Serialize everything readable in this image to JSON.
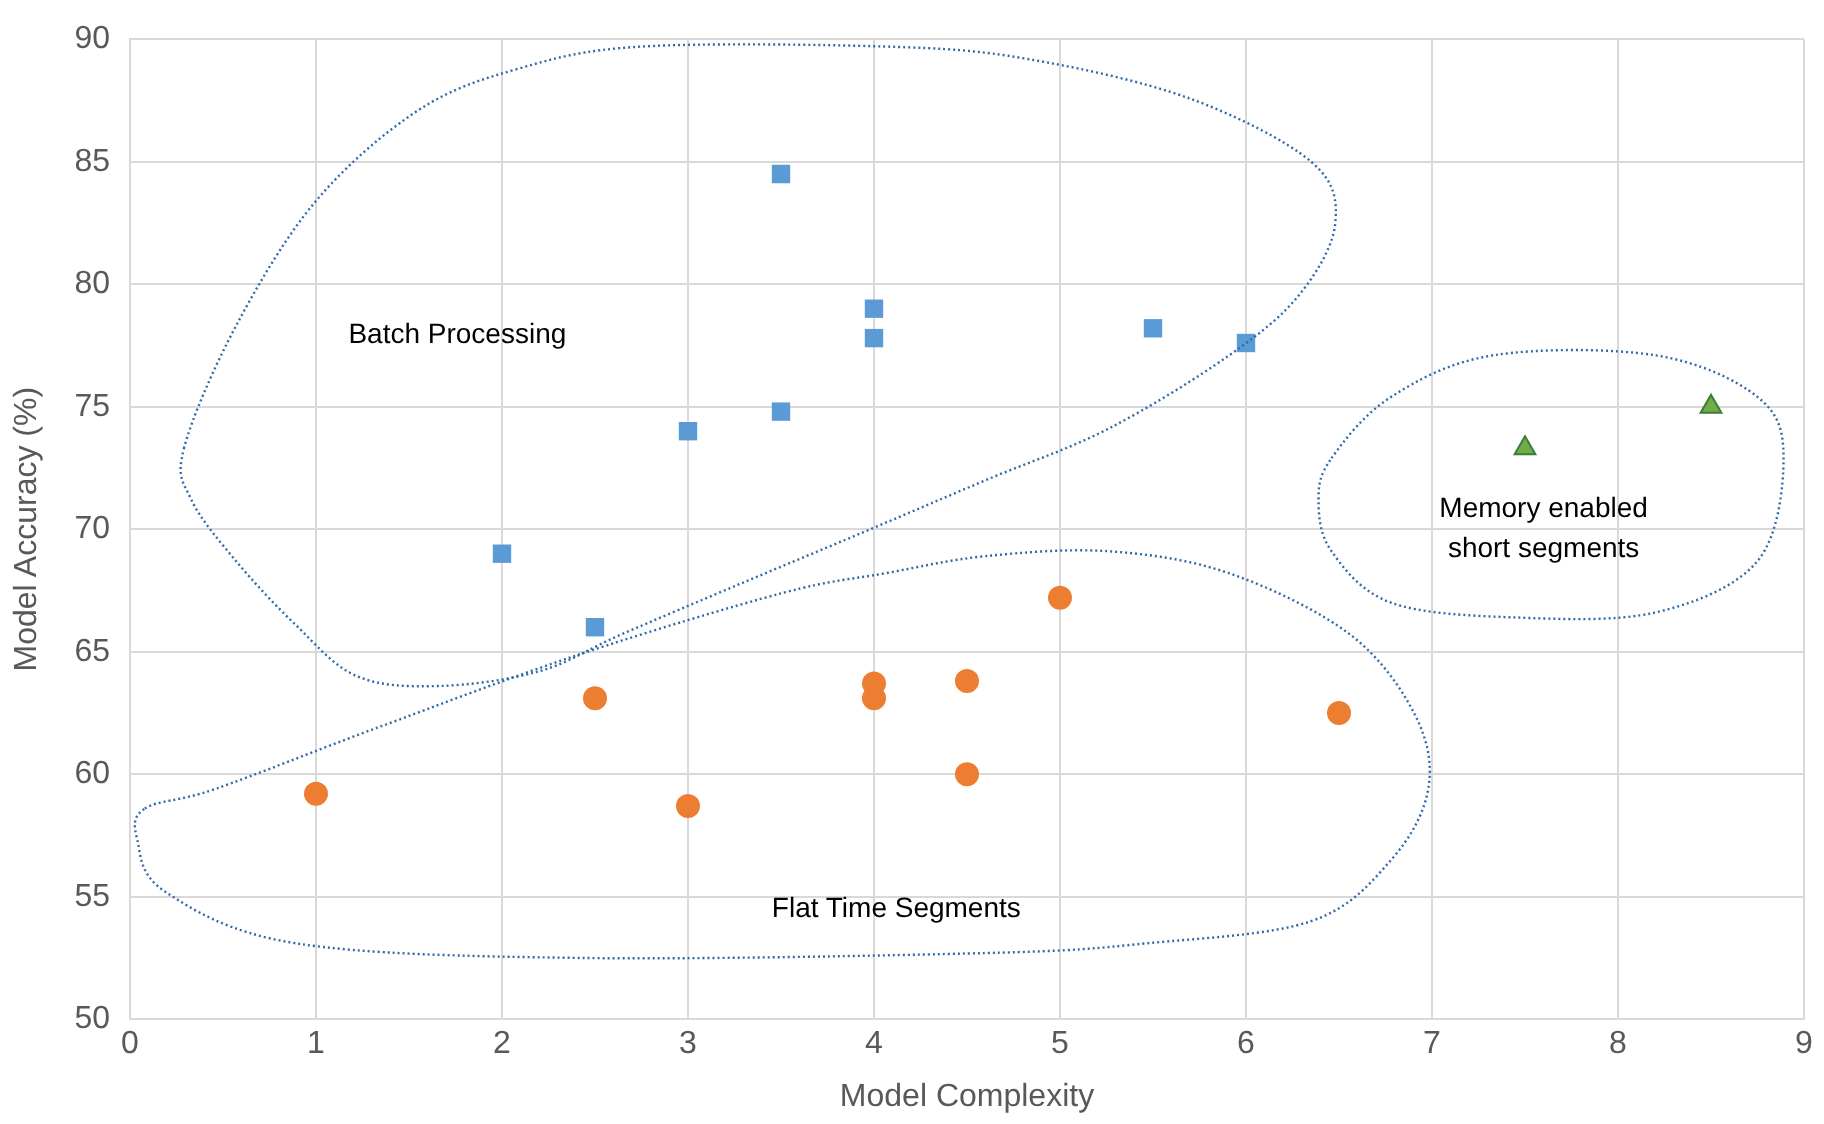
{
  "chart_data": {
    "type": "scatter",
    "xlabel": "Model Complexity",
    "ylabel": "Model Accuracy (%)",
    "xlim": [
      0,
      9
    ],
    "xticks": [
      0,
      1,
      2,
      3,
      4,
      5,
      6,
      7,
      8,
      9
    ],
    "ylim": [
      50,
      90
    ],
    "yticks": [
      50,
      55,
      60,
      65,
      70,
      75,
      80,
      85,
      90
    ],
    "grid": true,
    "legend": false,
    "series": [
      {
        "color": "#5b9bd5",
        "marker": "square",
        "x": [
          2,
          2.5,
          3,
          3.5,
          3.5,
          4,
          4,
          5.5,
          6
        ],
        "values": [
          69,
          66,
          74,
          74.8,
          84.5,
          79,
          77.8,
          78.2,
          77.6
        ]
      },
      {
        "color": "#ed7d31",
        "marker": "circle",
        "x": [
          1,
          2.5,
          3,
          4,
          4,
          4.5,
          4.5,
          5,
          6.5
        ],
        "values": [
          59.2,
          63.1,
          58.7,
          63.7,
          63.1,
          63.8,
          60,
          67.2,
          62.5
        ]
      },
      {
        "color": "#70ad47",
        "marker": "triangle",
        "x": [
          7.5,
          8.5
        ],
        "values": [
          73.3,
          75
        ]
      }
    ],
    "annotations": [
      "Batch Processing",
      "Flat Time Segments",
      "Memory enabled\nshort segments"
    ]
  }
}
